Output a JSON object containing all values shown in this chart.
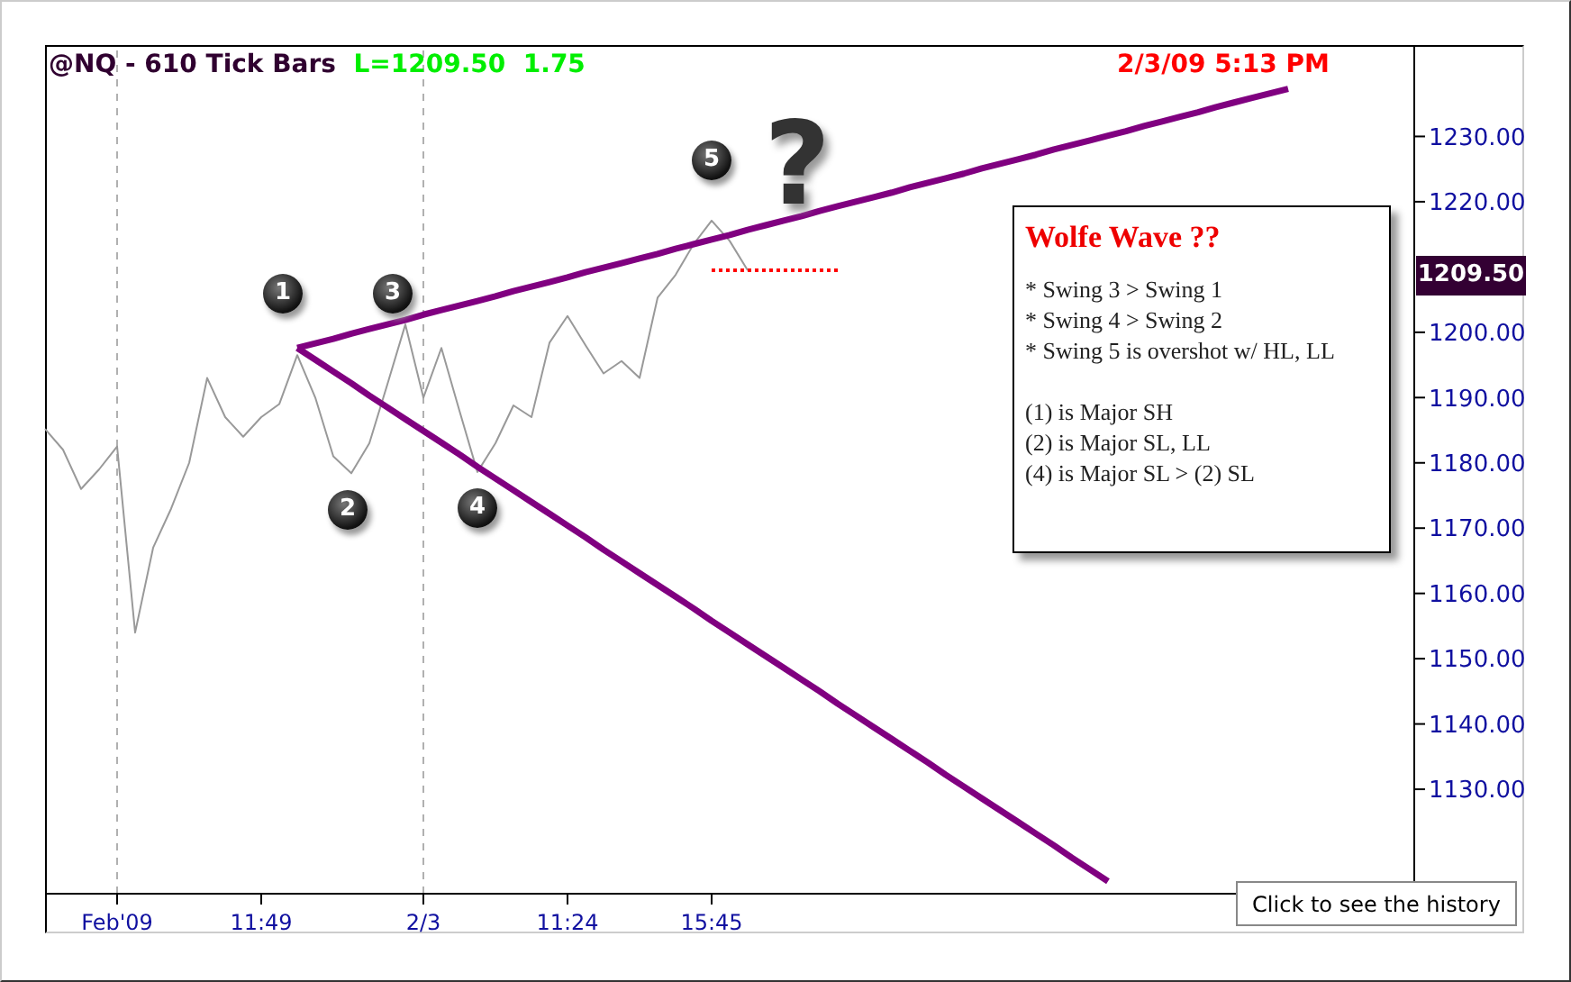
{
  "chart_data": {
    "type": "line",
    "title": "@NQ - 610 Tick Bars",
    "subtitle": "L=1209.50  1.75",
    "categories": [
      null,
      null,
      null,
      null,
      "Feb'09",
      null,
      null,
      null,
      null,
      null,
      null,
      null,
      "11:49",
      null,
      null,
      null,
      null,
      null,
      null,
      null,
      null,
      "2/3",
      null,
      null,
      null,
      null,
      null,
      null,
      null,
      "11:24",
      null,
      null,
      null,
      null,
      null,
      null,
      null,
      "15:45",
      null,
      null,
      null,
      null,
      null,
      null,
      null,
      null,
      null,
      null,
      null,
      null,
      null,
      null,
      null,
      null,
      null,
      null,
      null,
      null,
      null,
      null,
      null,
      null,
      null,
      null,
      null,
      null,
      null,
      null,
      null,
      null,
      null,
      null,
      null,
      null,
      null,
      null,
      null
    ],
    "ylim": [
      1114,
      1244
    ],
    "yticks": [
      {
        "value": 1130,
        "label": "1130.00"
      },
      {
        "value": 1140,
        "label": "1140.00"
      },
      {
        "value": 1150,
        "label": "1150.00"
      },
      {
        "value": 1160,
        "label": "1160.00"
      },
      {
        "value": 1170,
        "label": "1170.00"
      },
      {
        "value": 1180,
        "label": "1180.00"
      },
      {
        "value": 1190,
        "label": "1190.00"
      },
      {
        "value": 1200,
        "label": "1200.00"
      },
      {
        "value": 1220,
        "label": "1220.00"
      },
      {
        "value": 1230,
        "label": "1230.00"
      }
    ],
    "marker": "none",
    "legend": false,
    "series": [
      {
        "type": "line",
        "color": "#999999",
        "values": [
          1185.2,
          1182,
          1176,
          1179,
          1182.5,
          1154,
          1167,
          1173,
          1180,
          1193,
          1187,
          1184,
          1187,
          1189,
          1196.5,
          1190,
          1181,
          1178.4,
          1183,
          1192,
          1201.2,
          1190,
          1197.6,
          1188,
          1178.6,
          1183,
          1188.8,
          1187,
          1198.4,
          1202.5,
          1198,
          1193.7,
          1195.6,
          1193,
          1205.3,
          1208.8,
          1213.5,
          1217.1,
          1214,
          1209.5,
          null,
          null,
          null,
          null,
          null,
          null,
          null,
          null,
          null,
          null,
          null,
          null,
          null,
          null,
          null,
          null,
          null,
          null,
          null,
          null,
          null,
          null,
          null,
          null,
          null,
          null,
          null,
          null,
          null,
          null,
          null,
          null,
          null,
          null,
          null,
          null,
          null
        ]
      },
      {
        "type": "line",
        "color": "#800080",
        "values": [
          null,
          null,
          null,
          null,
          null,
          null,
          null,
          null,
          null,
          null,
          null,
          null,
          null,
          null,
          1197.6,
          1198.3,
          1199.0,
          1199.8,
          1200.5,
          1201.2,
          1201.9,
          1202.7,
          1203.4,
          1204.1,
          1204.8,
          1205.5,
          1206.3,
          1207.0,
          1207.7,
          1208.4,
          1209.2,
          1209.9,
          1210.6,
          1211.3,
          1212.0,
          1212.8,
          1213.5,
          1214.2,
          1214.9,
          1215.7,
          1216.4,
          1217.1,
          1217.8,
          1218.6,
          1219.3,
          1220.0,
          1220.7,
          1221.4,
          1222.2,
          1222.9,
          1223.6,
          1224.3,
          1225.1,
          1225.8,
          1226.5,
          1227.2,
          1228.0,
          1228.7,
          1229.4,
          1230.1,
          1230.8,
          1231.6,
          1232.3,
          1233.0,
          1233.7,
          1234.5,
          1235.2,
          1235.9,
          1236.6,
          1237.3,
          null,
          null,
          null,
          null,
          null,
          null,
          null
        ]
      },
      {
        "type": "line",
        "color": "#800080",
        "values": [
          null,
          null,
          null,
          null,
          null,
          null,
          null,
          null,
          null,
          null,
          null,
          null,
          null,
          null,
          1197.6,
          1195.8,
          1194.0,
          1192.2,
          1190.3,
          1188.5,
          1186.7,
          1184.9,
          1183.1,
          1181.3,
          1179.4,
          1177.6,
          1175.8,
          1174.0,
          1172.2,
          1170.4,
          1168.6,
          1166.7,
          1164.9,
          1163.1,
          1161.3,
          1159.5,
          1157.7,
          1155.8,
          1154.0,
          1152.2,
          1150.4,
          1148.6,
          1146.8,
          1145.0,
          1143.1,
          1141.3,
          1139.5,
          1137.7,
          1135.9,
          1134.1,
          1132.2,
          1130.4,
          1128.6,
          1126.8,
          1125.0,
          1123.2,
          1121.4,
          1119.5,
          1117.7,
          1115.9,
          null,
          null,
          null,
          null,
          null,
          null,
          null,
          null,
          null,
          null,
          null,
          null,
          null,
          null,
          null,
          null,
          null
        ]
      },
      {
        "type": "line",
        "color": "#ff0000",
        "line_style": "dotted",
        "values": [
          null,
          null,
          null,
          null,
          null,
          null,
          null,
          null,
          null,
          null,
          null,
          null,
          null,
          null,
          null,
          null,
          null,
          null,
          null,
          null,
          null,
          null,
          null,
          null,
          null,
          null,
          null,
          null,
          null,
          null,
          null,
          null,
          null,
          null,
          null,
          null,
          null,
          1209.5,
          1209.5,
          1209.5,
          1209.5,
          1209.5,
          1209.5,
          1209.5,
          1209.5,
          null,
          null,
          null,
          null,
          null,
          null,
          null,
          null,
          null,
          null,
          null,
          null,
          null,
          null,
          null,
          null,
          null,
          null,
          null,
          null,
          null,
          null,
          null,
          null,
          null,
          null,
          null,
          null,
          null,
          null,
          null,
          null
        ]
      }
    ],
    "ref_lines": [
      {
        "axis": "x",
        "value": "Feb'09",
        "color": "#b0b0b0",
        "line_style": "dashed"
      },
      {
        "axis": "x",
        "value": "2/3",
        "color": "#b0b0b0",
        "line_style": "dashed"
      }
    ],
    "annotations": [
      "2/3/09 5:13 PM",
      "1209.50",
      "1",
      "2",
      "3",
      "4",
      "5",
      "?",
      "Wolfe Wave ??",
      "* Swing 3 > Swing 1",
      "* Swing 4 > Swing 2",
      "* Swing 5 is overshot w/ HL, LL",
      "(1) is Major SH",
      "(2) is Major SL, LL",
      "(4) is Major SL > (2) SL",
      "Click to see the history"
    ]
  }
}
